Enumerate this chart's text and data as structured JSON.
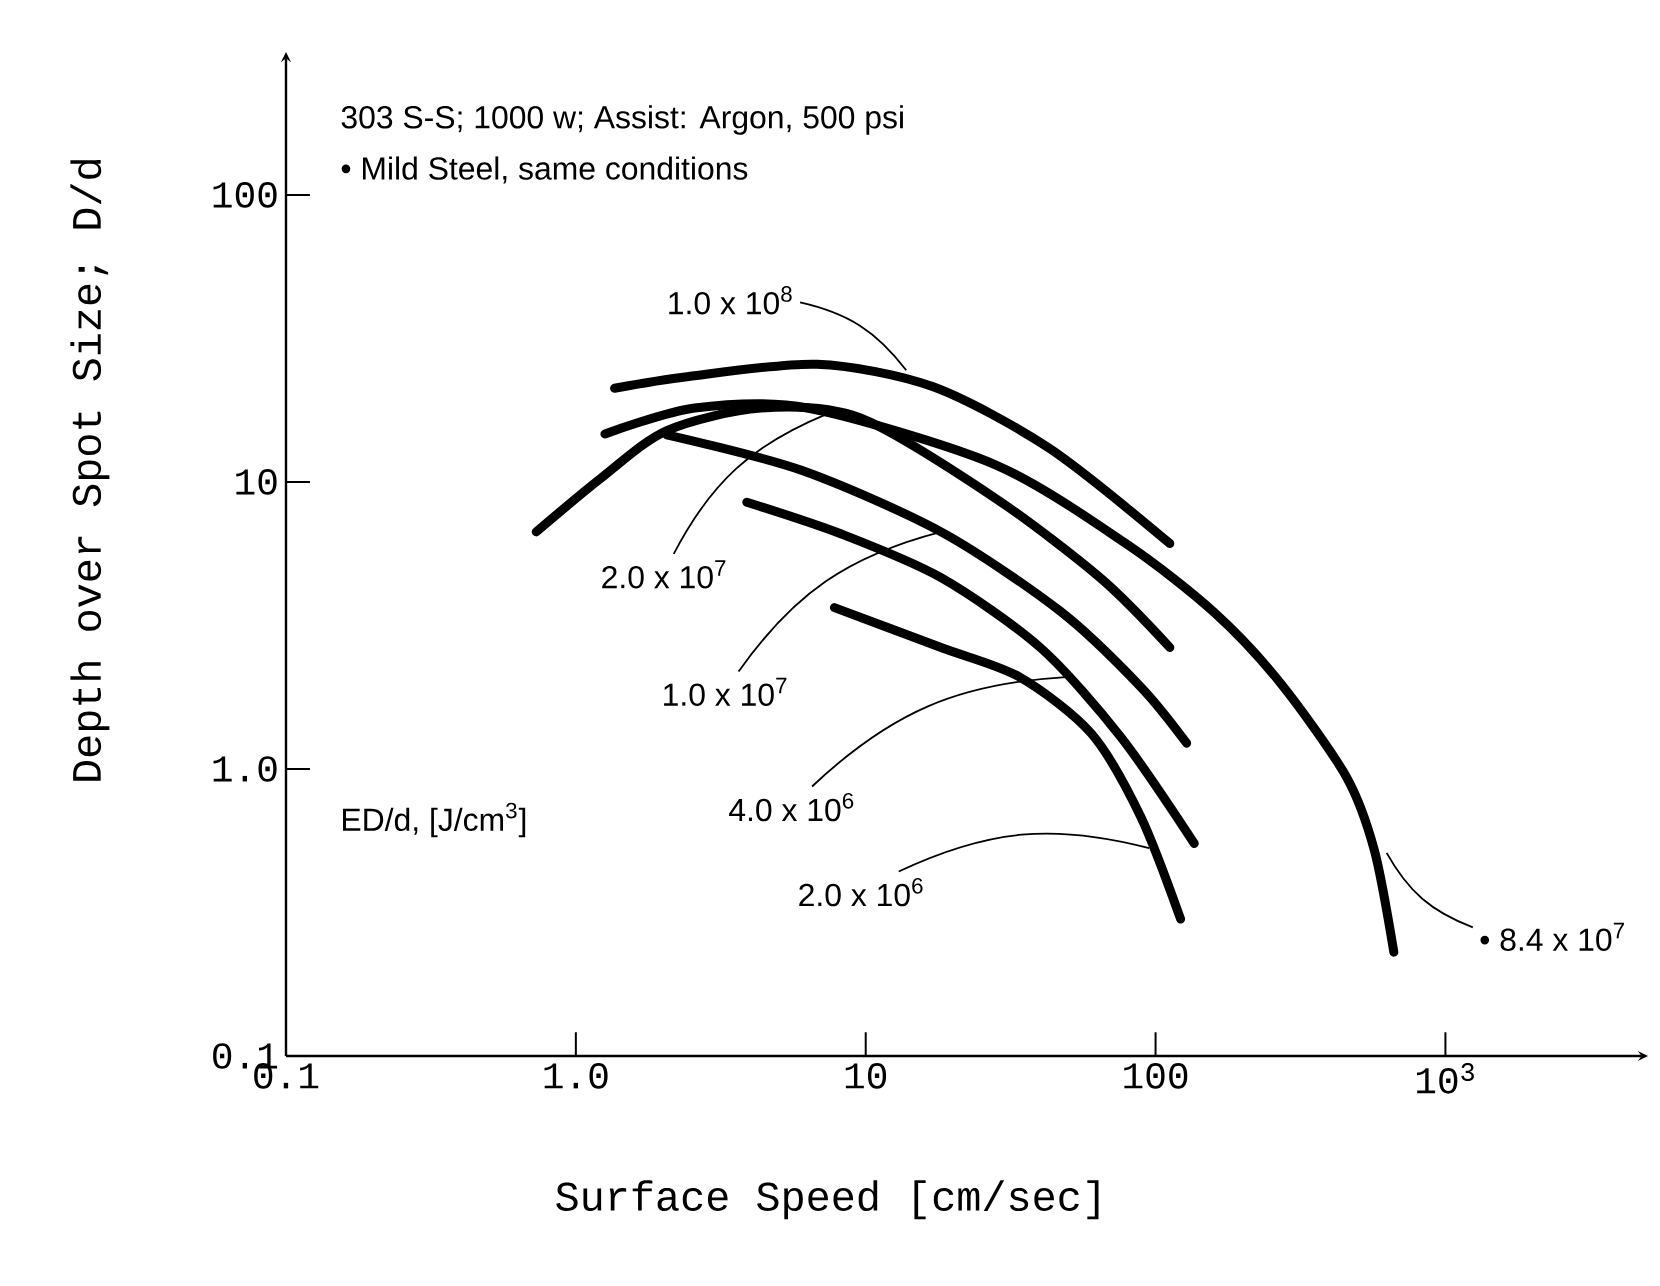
{
  "chart_data": {
    "type": "line",
    "xlabel": "Surface Speed [cm/sec]",
    "ylabel": "Depth over Spot Size; D/d",
    "log": "xy",
    "xlim": [
      0.1,
      5000
    ],
    "ylim": [
      0.1,
      300
    ],
    "xticks": [
      0.1,
      {
        "value": 1,
        "label": "1.0"
      },
      10,
      100,
      {
        "value": 1000,
        "label": "10$^{3}$"
      }
    ],
    "yticks": [
      0.1,
      {
        "value": 1,
        "label": "1.0"
      },
      10,
      100
    ],
    "annotations": [
      "303 S-S; 1000 w; Assist: Argon, 500 psi",
      "• Mild Steel, same conditions",
      "ED/d, [J/cm$^{3}$]",
      {
        "text": "1.0 x 10$^{8}$",
        "x": 13.8,
        "y": 24.5
      },
      {
        "text": "• 8.4 x 10$^{7}$",
        "x": 627,
        "y": 0.51
      },
      {
        "text": "2.0 x 10$^{7}$",
        "x": 7.3,
        "y": 17.2
      },
      {
        "text": "1.0 x 10$^{7}$",
        "x": 18.2,
        "y": 6.7
      },
      {
        "text": "4.0 x 10$^{6}$",
        "x": 49,
        "y": 2.09
      },
      {
        "text": "2.0 x 10$^{6}$",
        "x": 95,
        "y": 0.53
      }
    ],
    "series": [
      {
        "color": "#000000",
        "x": [
          1.36,
          2.45,
          6.8,
          17,
          43,
          112
        ],
        "values": [
          21.2,
          23.3,
          25.7,
          21.5,
          13.1,
          6.1
        ]
      },
      {
        "color": "#000000",
        "x": [
          1.26,
          2.57,
          6.3,
          27.9,
          79,
          160,
          270,
          455,
          569,
          664
        ],
        "values": [
          14.7,
          18.1,
          18.1,
          11.5,
          6.1,
          3.5,
          1.99,
          0.94,
          0.52,
          0.23
        ]
      },
      {
        "color": "#000000",
        "x": [
          0.73,
          1.22,
          2.06,
          4.35,
          9.6,
          27.9,
          65,
          112
        ],
        "values": [
          6.7,
          10.3,
          15.1,
          18.1,
          16.7,
          8.8,
          4.6,
          2.65
        ]
      },
      {
        "color": "#000000",
        "x": [
          2.06,
          5.97,
          18.2,
          47,
          89,
          128
        ],
        "values": [
          14.6,
          11.0,
          6.7,
          3.54,
          1.93,
          1.23
        ]
      },
      {
        "color": "#000000",
        "x": [
          3.89,
          8.2,
          18.2,
          40,
          76,
          136
        ],
        "values": [
          8.5,
          6.6,
          4.64,
          2.65,
          1.29,
          0.55
        ]
      },
      {
        "color": "#000000",
        "x": [
          7.8,
          18.2,
          34,
          60,
          89,
          122
        ],
        "values": [
          3.65,
          2.65,
          2.09,
          1.33,
          0.68,
          0.3
        ]
      }
    ]
  }
}
